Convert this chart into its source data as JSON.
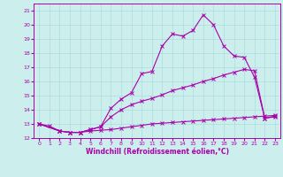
{
  "title": "",
  "xlabel": "Windchill (Refroidissement éolien,°C)",
  "ylabel": "",
  "xlim": [
    -0.5,
    23.5
  ],
  "ylim": [
    12,
    21.5
  ],
  "yticks": [
    12,
    13,
    14,
    15,
    16,
    17,
    18,
    19,
    20,
    21
  ],
  "xticks": [
    0,
    1,
    2,
    3,
    4,
    5,
    6,
    7,
    8,
    9,
    10,
    11,
    12,
    13,
    14,
    15,
    16,
    17,
    18,
    19,
    20,
    21,
    22,
    23
  ],
  "bg_color": "#cceeed",
  "line_color": "#aa00aa",
  "grid_color": "#aadddd",
  "line1_x": [
    0,
    1,
    2,
    3,
    4,
    5,
    6,
    7,
    8,
    9,
    10,
    11,
    12,
    13,
    14,
    15,
    16,
    17,
    18,
    19,
    20,
    21,
    22,
    23
  ],
  "line1_y": [
    13.0,
    12.85,
    12.5,
    12.4,
    12.4,
    12.5,
    12.55,
    12.6,
    12.7,
    12.8,
    12.9,
    13.0,
    13.05,
    13.1,
    13.15,
    13.2,
    13.25,
    13.3,
    13.35,
    13.4,
    13.45,
    13.5,
    13.55,
    13.6
  ],
  "line2_x": [
    0,
    2,
    3,
    4,
    5,
    6,
    7,
    8,
    9,
    10,
    11,
    12,
    13,
    14,
    15,
    16,
    17,
    18,
    19,
    20,
    21,
    22,
    23
  ],
  "line2_y": [
    13.0,
    12.5,
    12.4,
    12.4,
    12.6,
    12.8,
    13.5,
    14.0,
    14.35,
    14.6,
    14.8,
    15.05,
    15.35,
    15.55,
    15.75,
    16.0,
    16.2,
    16.45,
    16.65,
    16.85,
    16.75,
    13.4,
    13.5
  ],
  "line3_x": [
    0,
    2,
    3,
    4,
    5,
    6,
    7,
    8,
    9,
    10,
    11,
    12,
    13,
    14,
    15,
    16,
    17,
    18,
    19,
    20,
    21,
    22,
    23
  ],
  "line3_y": [
    13.0,
    12.5,
    12.4,
    12.4,
    12.6,
    12.8,
    14.1,
    14.75,
    15.2,
    16.55,
    16.7,
    18.5,
    19.35,
    19.2,
    19.6,
    20.7,
    20.0,
    18.5,
    17.8,
    17.7,
    16.3,
    13.4,
    13.55
  ],
  "xlabel_fontsize": 5.5,
  "tick_fontsize": 4.5
}
